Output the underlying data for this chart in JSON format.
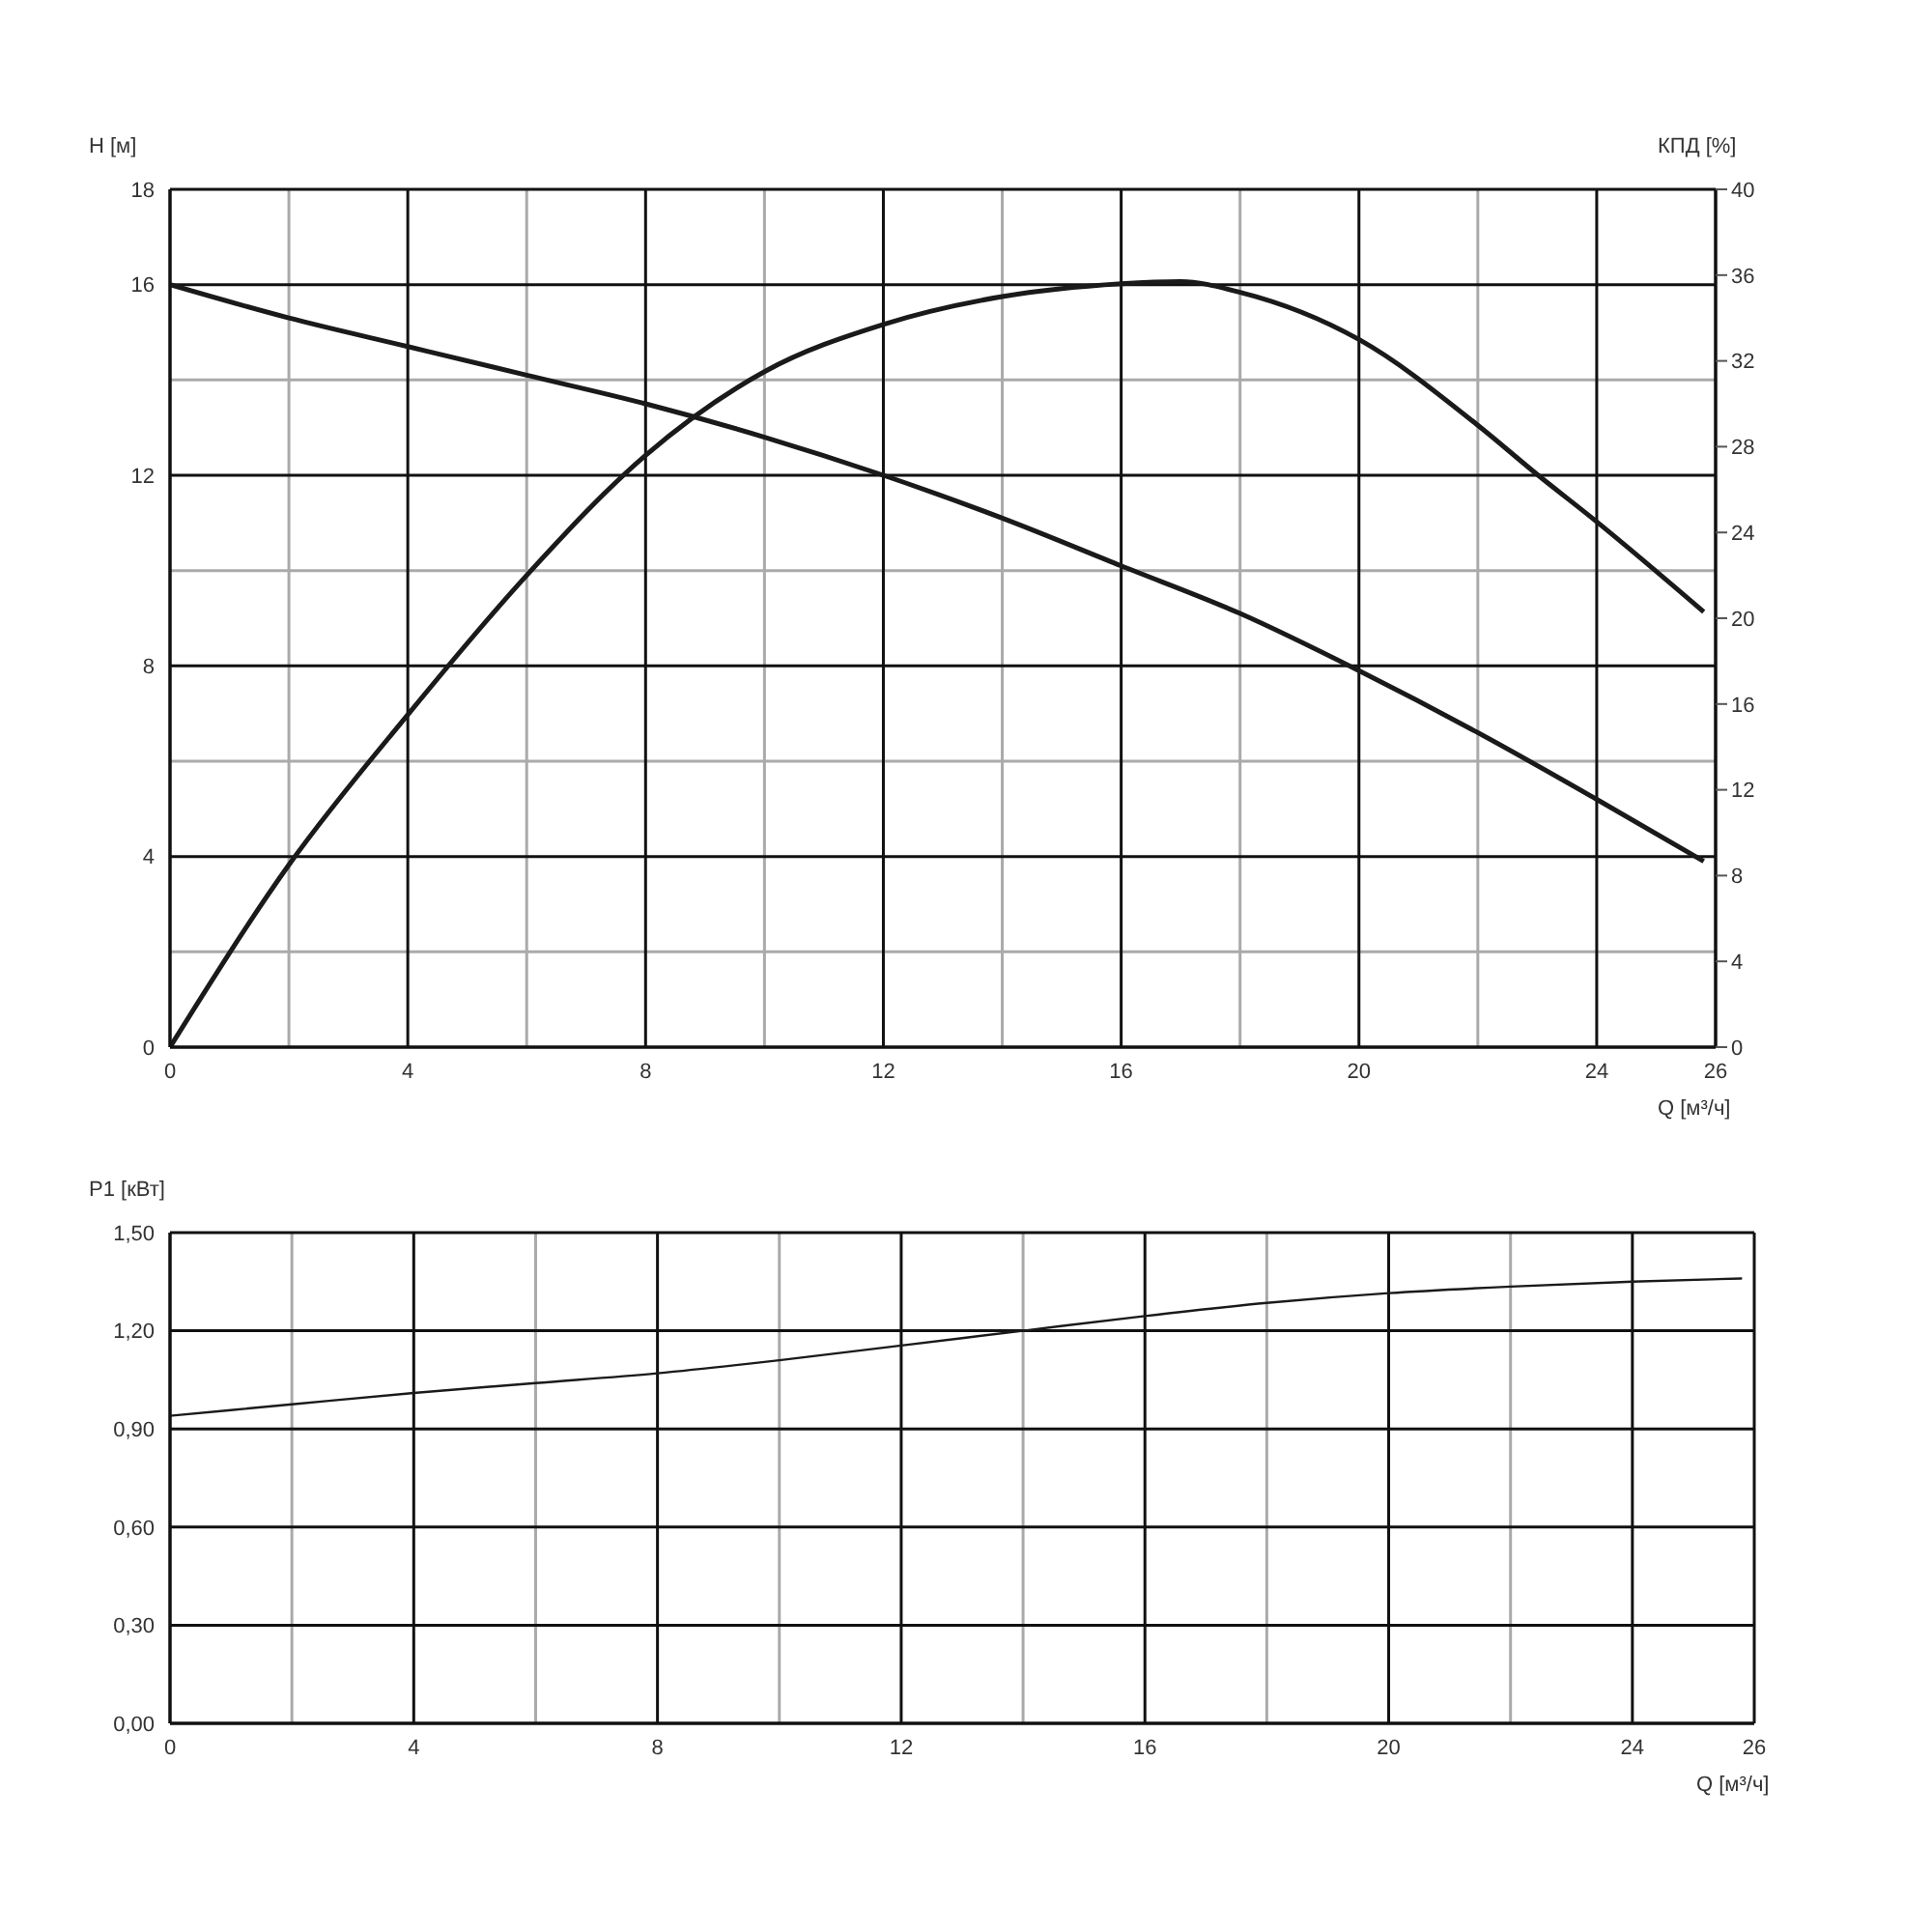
{
  "chart_data": [
    {
      "type": "line",
      "xlabel": "Q [м³/ч]",
      "ylabel": "H [м]",
      "y2label": "КПД [%]",
      "grid": true,
      "marker": "none",
      "xlim": [
        0,
        26
      ],
      "xticks": [
        0,
        {
          "value": 2,
          "label": null
        },
        4,
        {
          "value": 6,
          "label": null
        },
        8,
        {
          "value": 10,
          "label": null
        },
        12,
        {
          "value": 14,
          "label": null
        },
        16,
        {
          "value": 18,
          "label": null
        },
        20,
        {
          "value": 22,
          "label": null
        },
        24,
        26
      ],
      "ylim": [
        0,
        18
      ],
      "yticks": [
        0,
        {
          "value": 2,
          "label": null
        },
        4,
        {
          "value": 6,
          "label": null
        },
        8,
        {
          "value": 10,
          "label": null
        },
        12,
        {
          "value": 14,
          "label": null
        },
        16,
        18
      ],
      "y2lim": [
        0,
        40
      ],
      "y2ticks": [
        0,
        4,
        8,
        12,
        16,
        20,
        24,
        28,
        32,
        36,
        40
      ],
      "series": [
        {
          "color": "#1a1a1a",
          "x": [
            0,
            2,
            4,
            6,
            8,
            10,
            12,
            14,
            16,
            18,
            20,
            22,
            24,
            25.8
          ],
          "values": [
            16,
            15.3,
            14.7,
            14.1,
            13.5,
            12.8,
            12.0,
            11.1,
            10.1,
            9.1,
            7.9,
            6.6,
            5.2,
            3.9
          ]
        },
        {
          "color": "#1a1a1a",
          "axis": "y2",
          "x": [
            0,
            2,
            4,
            6,
            8,
            10,
            12,
            14,
            16,
            17,
            18,
            20,
            22,
            23,
            24,
            25.8
          ],
          "values": [
            0,
            8.5,
            15.5,
            22,
            27.6,
            31.5,
            33.7,
            35,
            35.6,
            35.7,
            35.2,
            33,
            29,
            26.7,
            24.5,
            20.3
          ]
        }
      ]
    },
    {
      "type": "line",
      "xlabel": "Q [м³/ч]",
      "ylabel": "P1 [кВт]",
      "grid": true,
      "marker": "none",
      "xlim": [
        0,
        26
      ],
      "xticks": [
        0,
        {
          "value": 2,
          "label": null
        },
        4,
        {
          "value": 6,
          "label": null
        },
        8,
        {
          "value": 10,
          "label": null
        },
        12,
        {
          "value": 14,
          "label": null
        },
        16,
        {
          "value": 18,
          "label": null
        },
        20,
        {
          "value": 22,
          "label": null
        },
        24,
        26
      ],
      "ylim": [
        0,
        1.5
      ],
      "yticks": [
        {
          "value": 0,
          "label": "0,00"
        },
        {
          "value": 0.3,
          "label": "0,30"
        },
        {
          "value": 0.6,
          "label": "0,60"
        },
        {
          "value": 0.9,
          "label": "0,90"
        },
        {
          "value": 1.2,
          "label": "1,20"
        },
        {
          "value": 1.5,
          "label": "1,50"
        }
      ],
      "series": [
        {
          "color": "#1a1a1a",
          "x": [
            0,
            2,
            4,
            6,
            8,
            10,
            12,
            14,
            16,
            18,
            20,
            22,
            24,
            25.8
          ],
          "values": [
            0.94,
            0.975,
            1.01,
            1.04,
            1.07,
            1.11,
            1.155,
            1.2,
            1.245,
            1.285,
            1.315,
            1.335,
            1.35,
            1.36
          ]
        }
      ]
    }
  ]
}
